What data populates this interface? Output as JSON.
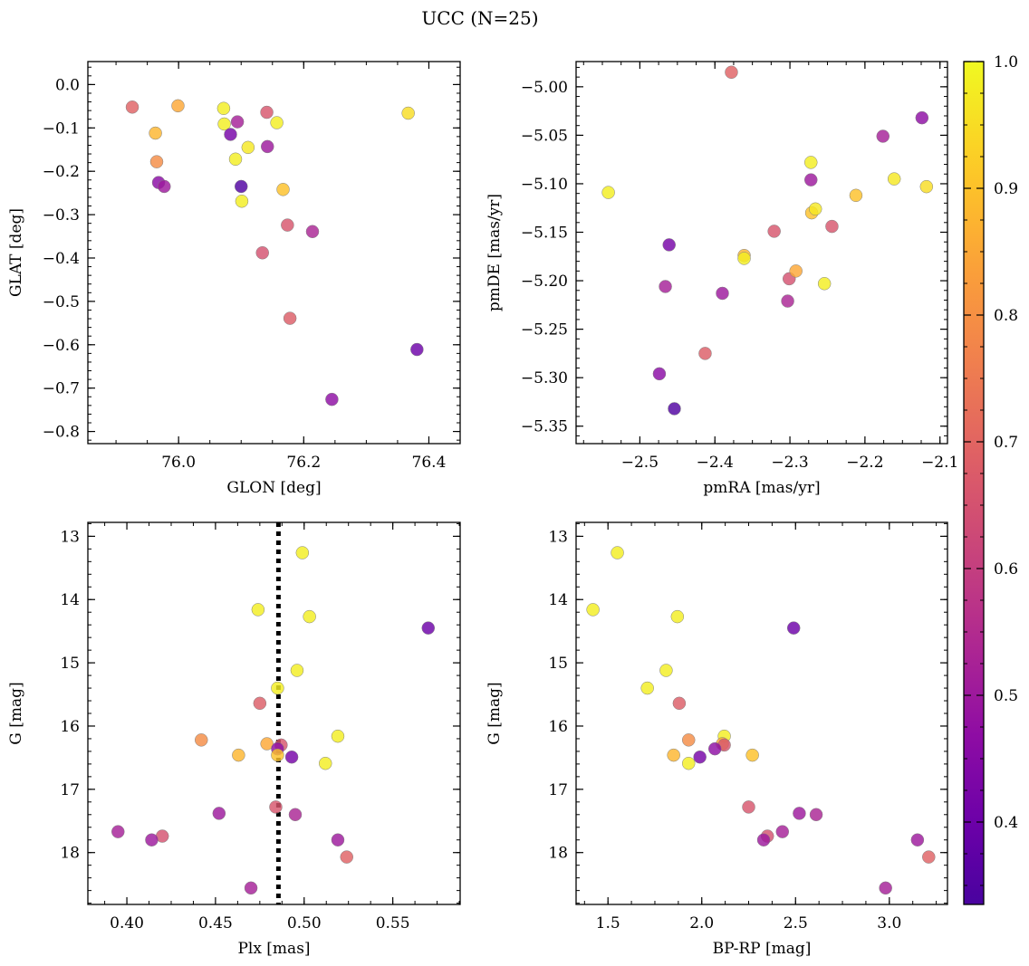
{
  "figure": {
    "title": "UCC (N=25)"
  },
  "colorbar": {
    "range": [
      0.335,
      1.0
    ],
    "ticks": [
      0.4,
      0.5,
      0.6,
      0.7,
      0.8,
      0.9,
      1.0
    ],
    "tick_labels": [
      "0.4",
      "0.5",
      "0.6",
      "0.7",
      "0.8",
      "0.9",
      "1.0"
    ],
    "colormap": "plasma"
  },
  "chart_data": [
    {
      "type": "scatter",
      "id": "glon-glat",
      "title": "",
      "xlabel": "GLON [deg]",
      "ylabel": "GLAT [deg]",
      "xlim": [
        75.855,
        76.45
      ],
      "ylim": [
        -0.828,
        0.053
      ],
      "y_inverted": false,
      "xticks": [
        76.0,
        76.2,
        76.4
      ],
      "xtick_labels": [
        "76.0",
        "76.2",
        "76.4"
      ],
      "yticks": [
        0.0,
        -0.1,
        -0.2,
        -0.3,
        -0.4,
        -0.5,
        -0.6,
        -0.7,
        -0.8
      ],
      "ytick_labels": [
        "0.0",
        "−0.1",
        "−0.2",
        "−0.3",
        "−0.4",
        "−0.5",
        "−0.6",
        "−0.7",
        "−0.8"
      ],
      "grid": false,
      "points": [
        {
          "x": 75.926,
          "y": -0.052,
          "c": 0.69
        },
        {
          "x": 75.999,
          "y": -0.049,
          "c": 0.85
        },
        {
          "x": 75.963,
          "y": -0.112,
          "c": 0.88
        },
        {
          "x": 75.965,
          "y": -0.178,
          "c": 0.79
        },
        {
          "x": 75.968,
          "y": -0.226,
          "c": 0.46
        },
        {
          "x": 75.977,
          "y": -0.235,
          "c": 0.5
        },
        {
          "x": 76.072,
          "y": -0.055,
          "c": 0.98
        },
        {
          "x": 76.073,
          "y": -0.091,
          "c": 0.98
        },
        {
          "x": 76.083,
          "y": -0.115,
          "c": 0.42
        },
        {
          "x": 76.094,
          "y": -0.086,
          "c": 0.52
        },
        {
          "x": 76.091,
          "y": -0.172,
          "c": 0.98
        },
        {
          "x": 76.111,
          "y": -0.145,
          "c": 0.97
        },
        {
          "x": 76.1,
          "y": -0.235,
          "c": 0.35
        },
        {
          "x": 76.101,
          "y": -0.269,
          "c": 0.98
        },
        {
          "x": 76.141,
          "y": -0.064,
          "c": 0.66
        },
        {
          "x": 76.142,
          "y": -0.143,
          "c": 0.5
        },
        {
          "x": 76.157,
          "y": -0.088,
          "c": 0.98
        },
        {
          "x": 76.167,
          "y": -0.242,
          "c": 0.9
        },
        {
          "x": 76.174,
          "y": -0.324,
          "c": 0.66
        },
        {
          "x": 76.134,
          "y": -0.388,
          "c": 0.65
        },
        {
          "x": 76.178,
          "y": -0.539,
          "c": 0.68
        },
        {
          "x": 76.214,
          "y": -0.339,
          "c": 0.53
        },
        {
          "x": 76.367,
          "y": -0.066,
          "c": 0.95
        },
        {
          "x": 76.381,
          "y": -0.611,
          "c": 0.4
        },
        {
          "x": 76.245,
          "y": -0.726,
          "c": 0.47
        }
      ]
    },
    {
      "type": "scatter",
      "id": "pmra-pmde",
      "title": "",
      "xlabel": "pmRA [mas/yr]",
      "ylabel": "pmDE [mas/yr]",
      "xlim": [
        -2.585,
        -2.09
      ],
      "ylim": [
        -5.368,
        -4.974
      ],
      "y_inverted": false,
      "xticks": [
        -2.5,
        -2.4,
        -2.3,
        -2.2,
        -2.1
      ],
      "xtick_labels": [
        "−2.5",
        "−2.4",
        "−2.3",
        "−2.2",
        "−2.1"
      ],
      "yticks": [
        -5.0,
        -5.05,
        -5.1,
        -5.15,
        -5.2,
        -5.25,
        -5.3,
        -5.35
      ],
      "ytick_labels": [
        "−5.00",
        "−5.05",
        "−5.10",
        "−5.15",
        "−5.20",
        "−5.25",
        "−5.30",
        "−5.35"
      ],
      "grid": false,
      "points": [
        {
          "x": -2.378,
          "y": -4.985,
          "c": 0.69
        },
        {
          "x": -2.542,
          "y": -5.109,
          "c": 0.98
        },
        {
          "x": -2.461,
          "y": -5.163,
          "c": 0.42
        },
        {
          "x": -2.466,
          "y": -5.206,
          "c": 0.52
        },
        {
          "x": -2.474,
          "y": -5.296,
          "c": 0.46
        },
        {
          "x": -2.454,
          "y": -5.332,
          "c": 0.35
        },
        {
          "x": -2.413,
          "y": -5.275,
          "c": 0.68
        },
        {
          "x": -2.39,
          "y": -5.213,
          "c": 0.5
        },
        {
          "x": -2.361,
          "y": -5.174,
          "c": 0.88
        },
        {
          "x": -2.361,
          "y": -5.177,
          "c": 0.98
        },
        {
          "x": -2.321,
          "y": -5.149,
          "c": 0.66
        },
        {
          "x": -2.303,
          "y": -5.221,
          "c": 0.53
        },
        {
          "x": -2.301,
          "y": -5.198,
          "c": 0.65
        },
        {
          "x": -2.292,
          "y": -5.19,
          "c": 0.85
        },
        {
          "x": -2.272,
          "y": -5.078,
          "c": 0.98
        },
        {
          "x": -2.272,
          "y": -5.096,
          "c": 0.5
        },
        {
          "x": -2.271,
          "y": -5.13,
          "c": 0.9
        },
        {
          "x": -2.266,
          "y": -5.126,
          "c": 0.97
        },
        {
          "x": -2.254,
          "y": -5.203,
          "c": 0.98
        },
        {
          "x": -2.244,
          "y": -5.144,
          "c": 0.66
        },
        {
          "x": -2.212,
          "y": -5.112,
          "c": 0.9
        },
        {
          "x": -2.176,
          "y": -5.051,
          "c": 0.52
        },
        {
          "x": -2.161,
          "y": -5.095,
          "c": 0.97
        },
        {
          "x": -2.124,
          "y": -5.032,
          "c": 0.47
        },
        {
          "x": -2.118,
          "y": -5.103,
          "c": 0.95
        }
      ]
    },
    {
      "type": "scatter",
      "id": "plx-g",
      "title": "",
      "xlabel": "Plx [mas]",
      "ylabel": "G [mag]",
      "xlim": [
        0.378,
        0.588
      ],
      "ylim": [
        12.78,
        18.82
      ],
      "y_inverted": true,
      "xticks": [
        0.4,
        0.45,
        0.5,
        0.55
      ],
      "xtick_labels": [
        "0.40",
        "0.45",
        "0.50",
        "0.55"
      ],
      "yticks": [
        13,
        14,
        15,
        16,
        17,
        18
      ],
      "ytick_labels": [
        "13",
        "14",
        "15",
        "16",
        "17",
        "18"
      ],
      "grid": false,
      "reference_line": {
        "x": 0.4855,
        "style": "dotted"
      },
      "points": [
        {
          "x": 0.499,
          "y": 13.26,
          "c": 0.98
        },
        {
          "x": 0.474,
          "y": 14.16,
          "c": 0.98
        },
        {
          "x": 0.503,
          "y": 14.27,
          "c": 0.98
        },
        {
          "x": 0.57,
          "y": 14.45,
          "c": 0.4
        },
        {
          "x": 0.496,
          "y": 15.12,
          "c": 0.98
        },
        {
          "x": 0.485,
          "y": 15.4,
          "c": 0.98
        },
        {
          "x": 0.475,
          "y": 15.64,
          "c": 0.68
        },
        {
          "x": 0.442,
          "y": 16.22,
          "c": 0.79
        },
        {
          "x": 0.519,
          "y": 16.16,
          "c": 0.98
        },
        {
          "x": 0.479,
          "y": 16.28,
          "c": 0.85
        },
        {
          "x": 0.487,
          "y": 16.3,
          "c": 0.66
        },
        {
          "x": 0.485,
          "y": 16.36,
          "c": 0.47
        },
        {
          "x": 0.463,
          "y": 16.46,
          "c": 0.88
        },
        {
          "x": 0.485,
          "y": 16.46,
          "c": 0.9
        },
        {
          "x": 0.493,
          "y": 16.49,
          "c": 0.42
        },
        {
          "x": 0.512,
          "y": 16.59,
          "c": 0.98
        },
        {
          "x": 0.484,
          "y": 17.28,
          "c": 0.66
        },
        {
          "x": 0.452,
          "y": 17.38,
          "c": 0.5
        },
        {
          "x": 0.495,
          "y": 17.4,
          "c": 0.53
        },
        {
          "x": 0.395,
          "y": 17.67,
          "c": 0.52
        },
        {
          "x": 0.42,
          "y": 17.74,
          "c": 0.65
        },
        {
          "x": 0.414,
          "y": 17.8,
          "c": 0.5
        },
        {
          "x": 0.519,
          "y": 17.8,
          "c": 0.5
        },
        {
          "x": 0.524,
          "y": 18.07,
          "c": 0.69
        },
        {
          "x": 0.47,
          "y": 18.56,
          "c": 0.52
        }
      ]
    },
    {
      "type": "scatter",
      "id": "bprp-g",
      "title": "",
      "xlabel": "BP-RP [mag]",
      "ylabel": "G [mag]",
      "xlim": [
        1.33,
        3.31
      ],
      "ylim": [
        12.78,
        18.82
      ],
      "y_inverted": true,
      "xticks": [
        1.5,
        2.0,
        2.5,
        3.0
      ],
      "xtick_labels": [
        "1.5",
        "2.0",
        "2.5",
        "3.0"
      ],
      "yticks": [
        13,
        14,
        15,
        16,
        17,
        18
      ],
      "ytick_labels": [
        "13",
        "14",
        "15",
        "16",
        "17",
        "18"
      ],
      "grid": false,
      "points": [
        {
          "x": 1.55,
          "y": 13.26,
          "c": 0.98
        },
        {
          "x": 1.42,
          "y": 14.16,
          "c": 0.98
        },
        {
          "x": 1.87,
          "y": 14.27,
          "c": 0.98
        },
        {
          "x": 2.49,
          "y": 14.45,
          "c": 0.4
        },
        {
          "x": 1.81,
          "y": 15.12,
          "c": 0.98
        },
        {
          "x": 1.71,
          "y": 15.4,
          "c": 0.98
        },
        {
          "x": 1.88,
          "y": 15.64,
          "c": 0.68
        },
        {
          "x": 1.93,
          "y": 16.22,
          "c": 0.79
        },
        {
          "x": 2.12,
          "y": 16.16,
          "c": 0.98
        },
        {
          "x": 2.11,
          "y": 16.28,
          "c": 0.85
        },
        {
          "x": 2.12,
          "y": 16.3,
          "c": 0.66
        },
        {
          "x": 2.07,
          "y": 16.36,
          "c": 0.47
        },
        {
          "x": 1.85,
          "y": 16.46,
          "c": 0.88
        },
        {
          "x": 2.27,
          "y": 16.46,
          "c": 0.9
        },
        {
          "x": 1.99,
          "y": 16.49,
          "c": 0.42
        },
        {
          "x": 1.93,
          "y": 16.59,
          "c": 0.98
        },
        {
          "x": 2.25,
          "y": 17.28,
          "c": 0.66
        },
        {
          "x": 2.52,
          "y": 17.38,
          "c": 0.5
        },
        {
          "x": 2.61,
          "y": 17.4,
          "c": 0.53
        },
        {
          "x": 2.43,
          "y": 17.67,
          "c": 0.52
        },
        {
          "x": 2.35,
          "y": 17.74,
          "c": 0.65
        },
        {
          "x": 2.33,
          "y": 17.8,
          "c": 0.5
        },
        {
          "x": 3.15,
          "y": 17.8,
          "c": 0.5
        },
        {
          "x": 3.21,
          "y": 18.07,
          "c": 0.69
        },
        {
          "x": 2.98,
          "y": 18.56,
          "c": 0.52
        }
      ]
    }
  ]
}
